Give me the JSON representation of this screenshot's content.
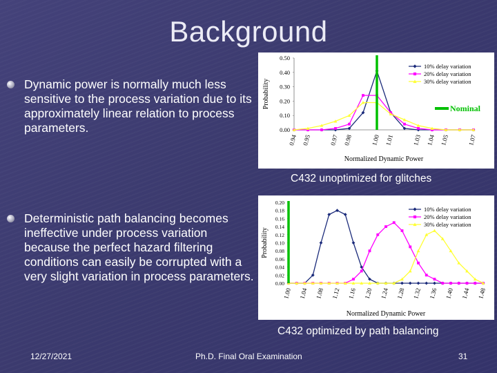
{
  "slide": {
    "title": "Background",
    "bullets": [
      "Dynamic power is normally much less sensitive to the process variation due to its approximately linear relation to process parameters.",
      "Deterministic path balancing becomes ineffective under process variation because the perfect hazard filtering conditions can easily be corrupted with a very slight variation in process parameters."
    ],
    "captions": [
      "C432 unoptimized for glitches",
      "C432 optimized by path balancing"
    ],
    "footer": {
      "date": "12/27/2021",
      "center": "Ph.D. Final Oral Examination",
      "page": "31"
    }
  },
  "chart_data": [
    {
      "type": "line",
      "xlabel": "Normalized Dynamic Power",
      "ylabel": "Probability",
      "ylim": [
        0,
        0.5
      ],
      "yticks": [
        "0.00",
        "0.10",
        "0.20",
        "0.30",
        "0.40",
        "0.50"
      ],
      "xticks": [
        "0.94",
        "0.95",
        "0.97",
        "0.98",
        "1.00",
        "1.01",
        "1.03",
        "1.04",
        "1.05",
        "1.07"
      ],
      "legend_position": "top-right",
      "annotation": "Nominal",
      "nominal_x": 1.0,
      "colors": {
        "nominal": "#00c000"
      },
      "series": [
        {
          "name": "10% delay variation",
          "color": "#1a2a7a",
          "marker": "diamond",
          "x": [
            0.94,
            0.95,
            0.96,
            0.97,
            0.98,
            0.99,
            1.0,
            1.01,
            1.02,
            1.03,
            1.04,
            1.05,
            1.06,
            1.07
          ],
          "values": [
            0,
            0,
            0,
            0,
            0.01,
            0.12,
            0.41,
            0.12,
            0.01,
            0,
            0,
            0,
            0,
            0
          ]
        },
        {
          "name": "20% delay variation",
          "color": "#ff00ff",
          "marker": "square",
          "x": [
            0.94,
            0.95,
            0.96,
            0.97,
            0.98,
            0.99,
            1.0,
            1.01,
            1.02,
            1.03,
            1.04,
            1.05,
            1.06,
            1.07
          ],
          "values": [
            0,
            0,
            0,
            0.01,
            0.04,
            0.24,
            0.24,
            0.12,
            0.04,
            0.01,
            0,
            0,
            0,
            0
          ]
        },
        {
          "name": "30% delay variation",
          "color": "#ffff33",
          "marker": "triangle",
          "x": [
            0.94,
            0.95,
            0.96,
            0.97,
            0.98,
            0.99,
            1.0,
            1.01,
            1.02,
            1.03,
            1.04,
            1.05,
            1.06,
            1.07
          ],
          "values": [
            0,
            0.01,
            0.03,
            0.06,
            0.1,
            0.19,
            0.19,
            0.11,
            0.07,
            0.03,
            0.01,
            0,
            0,
            0
          ]
        }
      ]
    },
    {
      "type": "line",
      "xlabel": "Normalized Dynamic Power",
      "ylabel": "Probability",
      "ylim": [
        0,
        0.2
      ],
      "yticks": [
        "0.00",
        "0.02",
        "0.04",
        "0.06",
        "0.08",
        "0.10",
        "0.12",
        "0.14",
        "0.16",
        "0.18",
        "0.20"
      ],
      "xticks": [
        "1.00",
        "1.04",
        "1.08",
        "1.12",
        "1.16",
        "1.20",
        "1.24",
        "1.28",
        "1.32",
        "1.36",
        "1.40",
        "1.44",
        "1.48"
      ],
      "legend_position": "top-right",
      "nominal_x": 1.0,
      "colors": {
        "nominal": "#00c000"
      },
      "series": [
        {
          "name": "10% delay variation",
          "color": "#1a2a7a",
          "marker": "diamond",
          "x": [
            1.0,
            1.02,
            1.04,
            1.06,
            1.08,
            1.1,
            1.12,
            1.14,
            1.16,
            1.18,
            1.2,
            1.22,
            1.24,
            1.26,
            1.28,
            1.3,
            1.32,
            1.34,
            1.36,
            1.38,
            1.4,
            1.42,
            1.44,
            1.46,
            1.48
          ],
          "values": [
            0,
            0,
            0,
            0.02,
            0.1,
            0.17,
            0.18,
            0.17,
            0.1,
            0.04,
            0.01,
            0,
            0,
            0,
            0,
            0,
            0,
            0,
            0,
            0,
            0,
            0,
            0,
            0,
            0
          ]
        },
        {
          "name": "20% delay variation",
          "color": "#ff00ff",
          "marker": "square",
          "x": [
            1.0,
            1.02,
            1.04,
            1.06,
            1.08,
            1.1,
            1.12,
            1.14,
            1.16,
            1.18,
            1.2,
            1.22,
            1.24,
            1.26,
            1.28,
            1.3,
            1.32,
            1.34,
            1.36,
            1.38,
            1.4,
            1.42,
            1.44,
            1.46,
            1.48
          ],
          "values": [
            0,
            0,
            0,
            0,
            0,
            0,
            0,
            0,
            0.01,
            0.03,
            0.08,
            0.12,
            0.14,
            0.15,
            0.13,
            0.09,
            0.05,
            0.02,
            0.01,
            0,
            0,
            0,
            0,
            0,
            0
          ]
        },
        {
          "name": "30% delay variation",
          "color": "#ffff33",
          "marker": "triangle",
          "x": [
            1.0,
            1.02,
            1.04,
            1.06,
            1.08,
            1.1,
            1.12,
            1.14,
            1.16,
            1.18,
            1.2,
            1.22,
            1.24,
            1.26,
            1.28,
            1.3,
            1.32,
            1.34,
            1.36,
            1.38,
            1.4,
            1.42,
            1.44,
            1.46,
            1.48
          ],
          "values": [
            0,
            0,
            0,
            0,
            0,
            0,
            0,
            0,
            0,
            0,
            0,
            0,
            0,
            0,
            0.01,
            0.03,
            0.08,
            0.12,
            0.13,
            0.11,
            0.08,
            0.05,
            0.03,
            0.01,
            0
          ]
        }
      ]
    }
  ]
}
